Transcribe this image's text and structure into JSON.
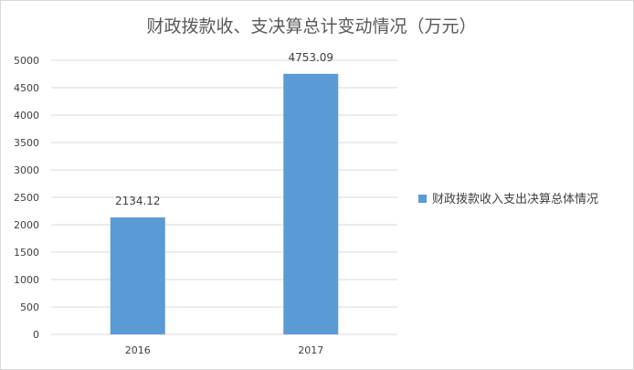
{
  "chart_data": {
    "type": "bar",
    "title": "财政拨款收、支决算总计变动情况（万元）",
    "categories": [
      "2016",
      "2017"
    ],
    "series": [
      {
        "name": "财政拨款收入支出决算总体情况",
        "values": [
          2134.12,
          4753.09
        ],
        "labels": [
          "2134.12",
          "4753.09"
        ]
      }
    ],
    "ylim": [
      0,
      5000
    ],
    "yticks": [
      0,
      500,
      1000,
      1500,
      2000,
      2500,
      3000,
      3500,
      4000,
      4500,
      5000
    ],
    "xlabel": "",
    "ylabel": "",
    "grid": true,
    "legend_position": "right",
    "colors": {
      "bar": "#5b9bd5",
      "grid": "#d9d9d9",
      "axis": "#d9d9d9"
    }
  }
}
